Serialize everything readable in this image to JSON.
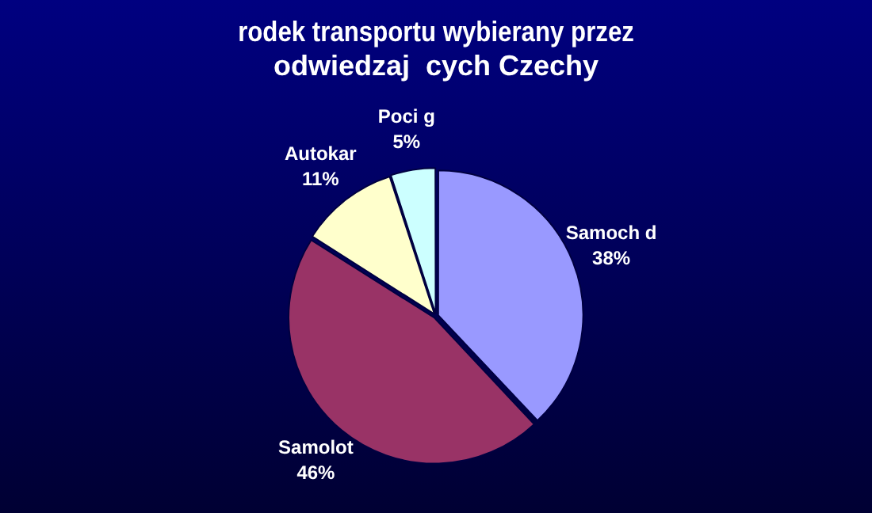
{
  "chart_data": {
    "type": "pie",
    "title": "rodek transportu wybierany przez\nodwiedzaj  cych Czechy",
    "categories": [
      "Samoch d",
      "Samolot",
      "Autokar",
      "Poci g"
    ],
    "values": [
      38,
      46,
      11,
      5
    ],
    "value_labels": [
      "38%",
      "46%",
      "11%",
      "5%"
    ],
    "colors": [
      "#9999ff",
      "#993366",
      "#ffffcc",
      "#ccffff"
    ],
    "legend": false
  }
}
